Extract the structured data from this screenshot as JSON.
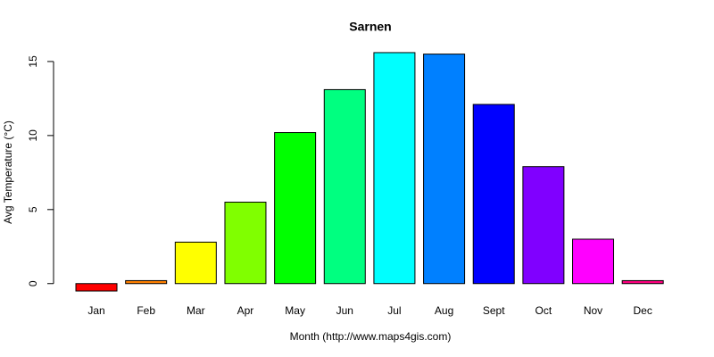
{
  "chart_data": {
    "type": "bar",
    "title": "Sarnen",
    "x_label": "Month (http://www.maps4gis.com)",
    "y_label": "Avg Temperature (°C)",
    "categories": [
      "Jan",
      "Feb",
      "Mar",
      "Apr",
      "May",
      "Jun",
      "Jul",
      "Aug",
      "Sept",
      "Oct",
      "Nov",
      "Dec"
    ],
    "values": [
      -0.5,
      0.2,
      2.8,
      5.5,
      10.2,
      13.1,
      15.6,
      15.5,
      12.1,
      7.9,
      3.0,
      0.2
    ],
    "colors": [
      "#ff0000",
      "#ff8000",
      "#ffff00",
      "#80ff00",
      "#00ff00",
      "#00ff80",
      "#00ffff",
      "#0080ff",
      "#0000ff",
      "#8000ff",
      "#ff00ff",
      "#ff0080"
    ],
    "ylim": [
      -1.1,
      16.2
    ],
    "yticks": [
      0,
      5,
      10,
      15
    ],
    "grid": false
  }
}
